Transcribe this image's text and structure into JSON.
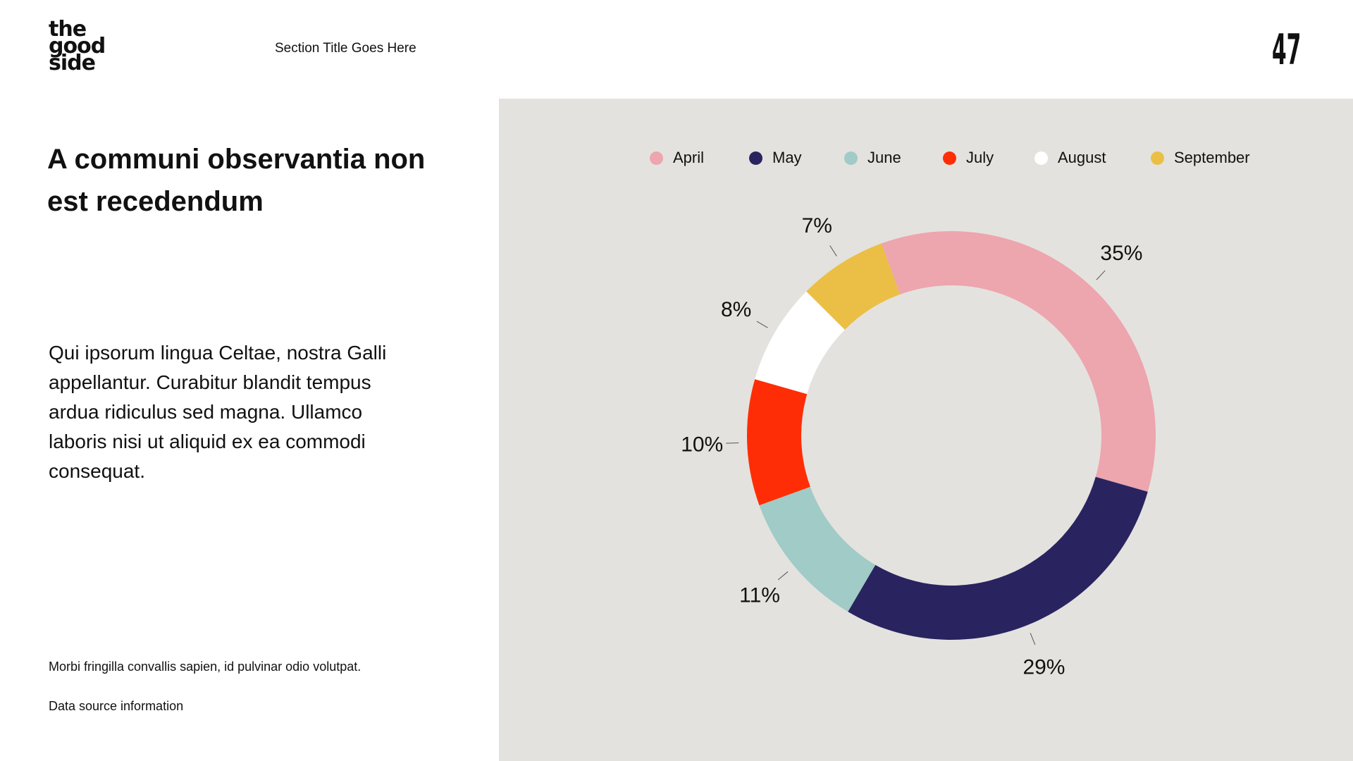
{
  "logo": {
    "line1": "the",
    "line2": "good",
    "line3": "side"
  },
  "header": {
    "section_title": "Section Title Goes Here",
    "page_number": "47"
  },
  "headline": "A communi observantia non est recedendum",
  "body_text": "Qui ipsorum lingua Celtae, nostra Galli appellantur. Curabitur blandit tempus ardua ridiculus sed magna. Ullamco laboris nisi ut aliquid ex ea commodi consequat.",
  "footer": {
    "note": "Morbi fringilla convallis sapien, id pulvinar odio volutpat.",
    "source": "Data source information"
  },
  "chart_data": {
    "type": "pie",
    "variant": "donut",
    "title": "",
    "categories": [
      "April",
      "May",
      "June",
      "July",
      "August",
      "September"
    ],
    "values": [
      35,
      29,
      11,
      10,
      8,
      7
    ],
    "labels": [
      "35%",
      "29%",
      "11%",
      "10%",
      "8%",
      "7%"
    ],
    "colors": [
      "#eda5ae",
      "#29245f",
      "#a0cbc6",
      "#ff2d06",
      "#ffffff",
      "#ebbf45"
    ],
    "legend_placement": "top",
    "start_angle_deg": -20,
    "direction": "clockwise"
  }
}
